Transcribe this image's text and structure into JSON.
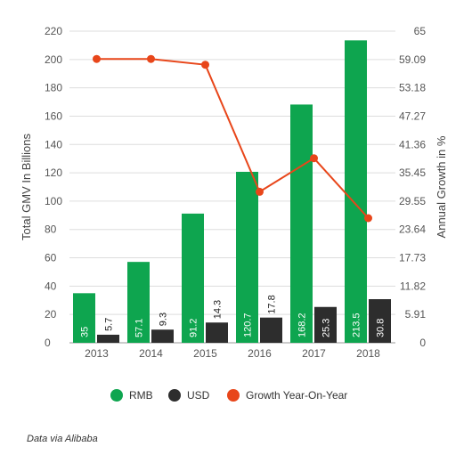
{
  "chart_data": {
    "type": "bar",
    "categories": [
      "2013",
      "2014",
      "2015",
      "2016",
      "2017",
      "2018"
    ],
    "series": [
      {
        "name": "RMB",
        "type": "bar",
        "axis": "left",
        "color": "#0ea54f",
        "values": [
          35,
          57.1,
          91.2,
          120.7,
          168.2,
          213.5
        ],
        "labels": [
          "35",
          "57.1",
          "91.2",
          "120.7",
          "168.2",
          "213.5"
        ]
      },
      {
        "name": "USD",
        "type": "bar",
        "axis": "left",
        "color": "#2d2d2d",
        "values": [
          5.7,
          9.3,
          14.3,
          17.8,
          25.3,
          30.8
        ],
        "labels": [
          "5.7",
          "9.3",
          "14.3",
          "17.8",
          "25.3",
          "30.8"
        ]
      },
      {
        "name": "Growth Year-On-Year",
        "type": "line",
        "axis": "right",
        "color": "#e8461a",
        "values": [
          59.2,
          59.2,
          58,
          31.5,
          38.5,
          26
        ]
      }
    ],
    "ylabel": "Total GMV In Billions",
    "y2label": "Annual Growth in %",
    "ylim": [
      0,
      220
    ],
    "y2lim": [
      0,
      65
    ],
    "yticks": [
      "0",
      "20",
      "40",
      "60",
      "80",
      "100",
      "120",
      "140",
      "160",
      "180",
      "200",
      "220"
    ],
    "y2ticks": [
      "0",
      "5.91",
      "11.82",
      "17.73",
      "23.64",
      "29.55",
      "35.45",
      "41.36",
      "47.27",
      "53.18",
      "59.09",
      "65"
    ],
    "grid": true,
    "legend_position": "bottom"
  },
  "source": "Data via Alibaba"
}
